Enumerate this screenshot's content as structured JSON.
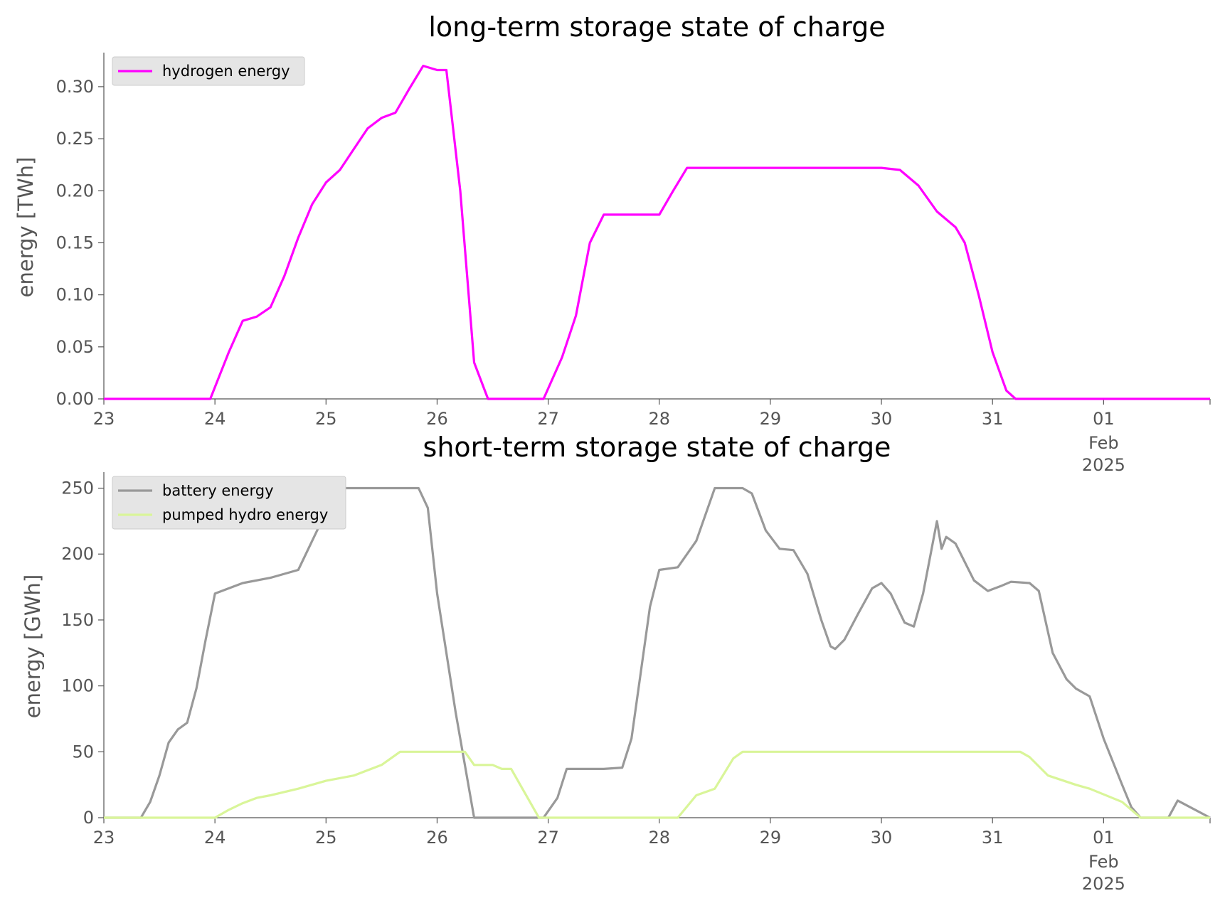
{
  "chart_data": [
    {
      "type": "line",
      "title": "long-term storage state of charge",
      "xlabel": "",
      "ylabel": "energy [TWh]",
      "xlim": [
        "2025-01-23 00:00",
        "2025-02-01 23:00"
      ],
      "ylim": [
        0,
        0.33
      ],
      "grid": false,
      "legend": "upper-left",
      "x_ticks": [
        {
          "date": "2025-01-23",
          "label": "23",
          "sub": ""
        },
        {
          "date": "2025-01-24",
          "label": "24",
          "sub": ""
        },
        {
          "date": "2025-01-25",
          "label": "25",
          "sub": ""
        },
        {
          "date": "2025-01-26",
          "label": "26",
          "sub": ""
        },
        {
          "date": "2025-01-27",
          "label": "27",
          "sub": ""
        },
        {
          "date": "2025-01-28",
          "label": "28",
          "sub": ""
        },
        {
          "date": "2025-01-29",
          "label": "29",
          "sub": ""
        },
        {
          "date": "2025-01-30",
          "label": "30",
          "sub": ""
        },
        {
          "date": "2025-01-31",
          "label": "31",
          "sub": ""
        },
        {
          "date": "2025-02-01",
          "label": "01",
          "sub": "Feb\n2025"
        }
      ],
      "y_ticks": [
        {
          "value": 0,
          "label": "0.00"
        },
        {
          "value": 0.05,
          "label": "0.05"
        },
        {
          "value": 0.1,
          "label": "0.10"
        },
        {
          "value": 0.15,
          "label": "0.15"
        },
        {
          "value": 0.2,
          "label": "0.20"
        },
        {
          "value": 0.25,
          "label": "0.25"
        },
        {
          "value": 0.3,
          "label": "0.30"
        }
      ],
      "series": [
        {
          "name": "hydrogen energy",
          "color": "#ff00ff",
          "points": [
            [
              "2025-01-23 00:00",
              0
            ],
            [
              "2025-01-23 23:00",
              0
            ],
            [
              "2025-01-24 03:00",
              0.045
            ],
            [
              "2025-01-24 06:00",
              0.075
            ],
            [
              "2025-01-24 09:00",
              0.079
            ],
            [
              "2025-01-24 12:00",
              0.088
            ],
            [
              "2025-01-24 15:00",
              0.118
            ],
            [
              "2025-01-24 18:00",
              0.155
            ],
            [
              "2025-01-24 21:00",
              0.187
            ],
            [
              "2025-01-25 00:00",
              0.208
            ],
            [
              "2025-01-25 03:00",
              0.22
            ],
            [
              "2025-01-25 06:00",
              0.24
            ],
            [
              "2025-01-25 09:00",
              0.26
            ],
            [
              "2025-01-25 12:00",
              0.27
            ],
            [
              "2025-01-25 15:00",
              0.275
            ],
            [
              "2025-01-25 18:00",
              0.298
            ],
            [
              "2025-01-25 21:00",
              0.32
            ],
            [
              "2025-01-26 00:00",
              0.316
            ],
            [
              "2025-01-26 02:00",
              0.316
            ],
            [
              "2025-01-26 05:00",
              0.2
            ],
            [
              "2025-01-26 08:00",
              0.035
            ],
            [
              "2025-01-26 11:00",
              0
            ],
            [
              "2025-01-26 23:00",
              0
            ],
            [
              "2025-01-27 03:00",
              0.04
            ],
            [
              "2025-01-27 06:00",
              0.08
            ],
            [
              "2025-01-27 09:00",
              0.15
            ],
            [
              "2025-01-27 12:00",
              0.177
            ],
            [
              "2025-01-27 18:00",
              0.177
            ],
            [
              "2025-01-28 00:00",
              0.177
            ],
            [
              "2025-01-28 03:00",
              0.2
            ],
            [
              "2025-01-28 06:00",
              0.222
            ],
            [
              "2025-01-28 12:00",
              0.222
            ],
            [
              "2025-01-29 00:00",
              0.222
            ],
            [
              "2025-01-29 12:00",
              0.222
            ],
            [
              "2025-01-30 00:00",
              0.222
            ],
            [
              "2025-01-30 04:00",
              0.22
            ],
            [
              "2025-01-30 08:00",
              0.205
            ],
            [
              "2025-01-30 12:00",
              0.18
            ],
            [
              "2025-01-30 16:00",
              0.165
            ],
            [
              "2025-01-30 18:00",
              0.15
            ],
            [
              "2025-01-30 21:00",
              0.1
            ],
            [
              "2025-01-31 00:00",
              0.045
            ],
            [
              "2025-01-31 03:00",
              0.008
            ],
            [
              "2025-01-31 05:00",
              0
            ],
            [
              "2025-02-01 23:00",
              0
            ]
          ]
        }
      ]
    },
    {
      "type": "line",
      "title": "short-term storage state of charge",
      "xlabel": "",
      "ylabel": "energy [GWh]",
      "xlim": [
        "2025-01-23 00:00",
        "2025-02-01 23:00"
      ],
      "ylim": [
        0,
        260
      ],
      "grid": false,
      "legend": "upper-left",
      "x_ticks": [
        {
          "date": "2025-01-23",
          "label": "23",
          "sub": ""
        },
        {
          "date": "2025-01-24",
          "label": "24",
          "sub": ""
        },
        {
          "date": "2025-01-25",
          "label": "25",
          "sub": ""
        },
        {
          "date": "2025-01-26",
          "label": "26",
          "sub": ""
        },
        {
          "date": "2025-01-27",
          "label": "27",
          "sub": ""
        },
        {
          "date": "2025-01-28",
          "label": "28",
          "sub": ""
        },
        {
          "date": "2025-01-29",
          "label": "29",
          "sub": ""
        },
        {
          "date": "2025-01-30",
          "label": "30",
          "sub": ""
        },
        {
          "date": "2025-01-31",
          "label": "31",
          "sub": ""
        },
        {
          "date": "2025-02-01",
          "label": "01",
          "sub": "Feb\n2025"
        }
      ],
      "y_ticks": [
        {
          "value": 0,
          "label": "0"
        },
        {
          "value": 50,
          "label": "50"
        },
        {
          "value": 100,
          "label": "100"
        },
        {
          "value": 150,
          "label": "150"
        },
        {
          "value": 200,
          "label": "200"
        },
        {
          "value": 250,
          "label": "250"
        }
      ],
      "series": [
        {
          "name": "battery energy",
          "color": "#999999",
          "points": [
            [
              "2025-01-23 00:00",
              0
            ],
            [
              "2025-01-23 08:00",
              0
            ],
            [
              "2025-01-23 10:00",
              12
            ],
            [
              "2025-01-23 12:00",
              32
            ],
            [
              "2025-01-23 14:00",
              57
            ],
            [
              "2025-01-23 16:00",
              67
            ],
            [
              "2025-01-23 18:00",
              72
            ],
            [
              "2025-01-23 20:00",
              98
            ],
            [
              "2025-01-23 22:00",
              135
            ],
            [
              "2025-01-24 00:00",
              170
            ],
            [
              "2025-01-24 06:00",
              178
            ],
            [
              "2025-01-24 12:00",
              182
            ],
            [
              "2025-01-24 18:00",
              188
            ],
            [
              "2025-01-25 00:00",
              232
            ],
            [
              "2025-01-25 02:00",
              250
            ],
            [
              "2025-01-25 12:00",
              250
            ],
            [
              "2025-01-25 20:00",
              250
            ],
            [
              "2025-01-25 22:00",
              235
            ],
            [
              "2025-01-26 00:00",
              170
            ],
            [
              "2025-01-26 04:00",
              80
            ],
            [
              "2025-01-26 08:00",
              0
            ],
            [
              "2025-01-26 20:00",
              0
            ],
            [
              "2025-01-26 23:00",
              0
            ],
            [
              "2025-01-27 02:00",
              15
            ],
            [
              "2025-01-27 04:00",
              37
            ],
            [
              "2025-01-27 12:00",
              37
            ],
            [
              "2025-01-27 16:00",
              38
            ],
            [
              "2025-01-27 18:00",
              60
            ],
            [
              "2025-01-27 22:00",
              160
            ],
            [
              "2025-01-28 00:00",
              188
            ],
            [
              "2025-01-28 04:00",
              190
            ],
            [
              "2025-01-28 08:00",
              210
            ],
            [
              "2025-01-28 12:00",
              250
            ],
            [
              "2025-01-28 18:00",
              250
            ],
            [
              "2025-01-28 20:00",
              246
            ],
            [
              "2025-01-28 23:00",
              218
            ],
            [
              "2025-01-29 02:00",
              204
            ],
            [
              "2025-01-29 05:00",
              203
            ],
            [
              "2025-01-29 08:00",
              185
            ],
            [
              "2025-01-29 11:00",
              150
            ],
            [
              "2025-01-29 13:00",
              130
            ],
            [
              "2025-01-29 14:00",
              128
            ],
            [
              "2025-01-29 16:00",
              135
            ],
            [
              "2025-01-29 19:00",
              155
            ],
            [
              "2025-01-29 22:00",
              174
            ],
            [
              "2025-01-30 00:00",
              178
            ],
            [
              "2025-01-30 02:00",
              170
            ],
            [
              "2025-01-30 05:00",
              148
            ],
            [
              "2025-01-30 07:00",
              145
            ],
            [
              "2025-01-30 09:00",
              170
            ],
            [
              "2025-01-30 12:00",
              225
            ],
            [
              "2025-01-30 13:00",
              204
            ],
            [
              "2025-01-30 14:00",
              213
            ],
            [
              "2025-01-30 16:00",
              208
            ],
            [
              "2025-01-30 20:00",
              180
            ],
            [
              "2025-01-30 23:00",
              172
            ],
            [
              "2025-01-31 02:00",
              176
            ],
            [
              "2025-01-31 04:00",
              179
            ],
            [
              "2025-01-31 08:00",
              178
            ],
            [
              "2025-01-31 10:00",
              172
            ],
            [
              "2025-01-31 13:00",
              125
            ],
            [
              "2025-01-31 16:00",
              105
            ],
            [
              "2025-01-31 18:00",
              98
            ],
            [
              "2025-01-31 21:00",
              92
            ],
            [
              "2025-02-01 00:00",
              60
            ],
            [
              "2025-02-01 04:00",
              25
            ],
            [
              "2025-02-01 06:00",
              8
            ],
            [
              "2025-02-01 08:00",
              0
            ],
            [
              "2025-02-01 14:00",
              0
            ],
            [
              "2025-02-01 16:00",
              13
            ],
            [
              "2025-02-01 23:00",
              0
            ]
          ]
        },
        {
          "name": "pumped hydro energy",
          "color": "#d9f599",
          "points": [
            [
              "2025-01-23 00:00",
              0
            ],
            [
              "2025-01-24 00:00",
              0
            ],
            [
              "2025-01-24 03:00",
              6
            ],
            [
              "2025-01-24 06:00",
              11
            ],
            [
              "2025-01-24 09:00",
              15
            ],
            [
              "2025-01-24 12:00",
              17
            ],
            [
              "2025-01-24 18:00",
              22
            ],
            [
              "2025-01-25 00:00",
              28
            ],
            [
              "2025-01-25 06:00",
              32
            ],
            [
              "2025-01-25 12:00",
              40
            ],
            [
              "2025-01-25 16:00",
              50
            ],
            [
              "2025-01-25 22:00",
              50
            ],
            [
              "2025-01-26 06:00",
              50
            ],
            [
              "2025-01-26 08:00",
              40
            ],
            [
              "2025-01-26 12:00",
              40
            ],
            [
              "2025-01-26 14:00",
              37
            ],
            [
              "2025-01-26 16:00",
              37
            ],
            [
              "2025-01-26 22:00",
              0
            ],
            [
              "2025-01-27 23:00",
              0
            ],
            [
              "2025-01-28 04:00",
              0
            ],
            [
              "2025-01-28 08:00",
              17
            ],
            [
              "2025-01-28 12:00",
              22
            ],
            [
              "2025-01-28 16:00",
              45
            ],
            [
              "2025-01-28 18:00",
              50
            ],
            [
              "2025-01-30 12:00",
              50
            ],
            [
              "2025-01-31 00:00",
              50
            ],
            [
              "2025-01-31 06:00",
              50
            ],
            [
              "2025-01-31 08:00",
              46
            ],
            [
              "2025-01-31 12:00",
              32
            ],
            [
              "2025-01-31 18:00",
              25
            ],
            [
              "2025-01-31 21:00",
              22
            ],
            [
              "2025-02-01 04:00",
              12
            ],
            [
              "2025-02-01 08:00",
              0
            ],
            [
              "2025-02-01 23:00",
              0
            ]
          ]
        }
      ]
    }
  ]
}
